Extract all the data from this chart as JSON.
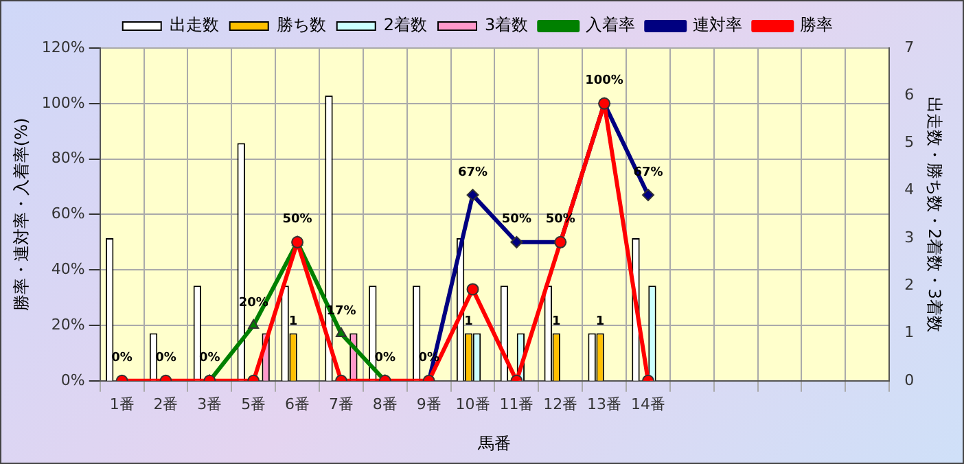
{
  "chart_data": {
    "type": "bar",
    "xlabel": "馬番",
    "ylabel": "勝率・連対率・入着率(%)",
    "y2label": "出走数・勝ち数・2着数・3着数",
    "categories": [
      "1番",
      "2番",
      "3番",
      "5番",
      "6番",
      "7番",
      "8番",
      "9番",
      "10番",
      "11番",
      "12番",
      "13番",
      "14番",
      null,
      null,
      null,
      null,
      null
    ],
    "series": [
      {
        "name": "出走数",
        "color": "#ffffff",
        "axis": "y2",
        "values": [
          3,
          1,
          2,
          5,
          2,
          6,
          2,
          2,
          3,
          2,
          2,
          1,
          3,
          null,
          null,
          null,
          null,
          null
        ]
      },
      {
        "name": "勝ち数",
        "color": "#ffc000",
        "axis": "y2",
        "values": [
          0,
          0,
          0,
          0,
          1,
          0,
          0,
          0,
          1,
          0,
          1,
          1,
          0,
          null,
          null,
          null,
          null,
          null
        ],
        "value_labels": [
          null,
          null,
          null,
          null,
          "1",
          null,
          null,
          null,
          "1",
          null,
          "1",
          "1",
          null,
          null,
          null,
          null,
          null,
          null
        ]
      },
      {
        "name": "2着数",
        "color": "#ccffff",
        "axis": "y2",
        "values": [
          0,
          0,
          0,
          0,
          0,
          0,
          0,
          0,
          1,
          1,
          0,
          0,
          2,
          null,
          null,
          null,
          null,
          null
        ]
      },
      {
        "name": "3着数",
        "color": "#ff99cc",
        "axis": "y2",
        "values": [
          0,
          0,
          0,
          1,
          0,
          1,
          0,
          0,
          0,
          0,
          0,
          0,
          0,
          null,
          null,
          null,
          null,
          null
        ]
      },
      {
        "name": "入着率",
        "type": "line",
        "color": "#008000",
        "marker": "triangle",
        "values": [
          null,
          null,
          0,
          20,
          50,
          17,
          0,
          null,
          null,
          null,
          null,
          null,
          null,
          null,
          null,
          null,
          null,
          null
        ],
        "value_labels": [
          null,
          null,
          "0%",
          "20%",
          "50%",
          "17%",
          "0%",
          null,
          null,
          null,
          null,
          null,
          null,
          null,
          null,
          null,
          null,
          null
        ]
      },
      {
        "name": "連対率",
        "type": "line",
        "color": "#000080",
        "marker": "diamond",
        "values": [
          null,
          null,
          null,
          null,
          null,
          null,
          null,
          0,
          67,
          50,
          50,
          100,
          67,
          null,
          null,
          null,
          null,
          null
        ],
        "value_labels": [
          null,
          null,
          null,
          null,
          null,
          null,
          null,
          null,
          "67%",
          "50%",
          "50%",
          "100%",
          "67%",
          null,
          null,
          null,
          null,
          null
        ]
      },
      {
        "name": "勝率",
        "type": "line",
        "color": "#ff0000",
        "marker": "circle",
        "values": [
          0,
          0,
          0,
          0,
          50,
          0,
          0,
          0,
          33,
          0,
          50,
          100,
          0,
          null,
          null,
          null,
          null,
          null
        ],
        "value_labels": [
          "0%",
          "0%",
          null,
          null,
          null,
          null,
          null,
          "0%",
          null,
          null,
          null,
          null,
          null,
          null,
          null,
          null,
          null,
          null
        ]
      }
    ],
    "ylim": [
      0,
      120
    ],
    "yticks": [
      {
        "value": 0,
        "label": "0%"
      },
      {
        "value": 20,
        "label": "20%"
      },
      {
        "value": 40,
        "label": "40%"
      },
      {
        "value": 60,
        "label": "60%"
      },
      {
        "value": 80,
        "label": "80%"
      },
      {
        "value": 100,
        "label": "100%"
      },
      {
        "value": 120,
        "label": "120%"
      }
    ],
    "y2lim": [
      0,
      7
    ],
    "y2ticks": [
      0,
      1,
      2,
      3,
      4,
      5,
      6,
      7
    ],
    "grid": true,
    "legend": "top"
  }
}
